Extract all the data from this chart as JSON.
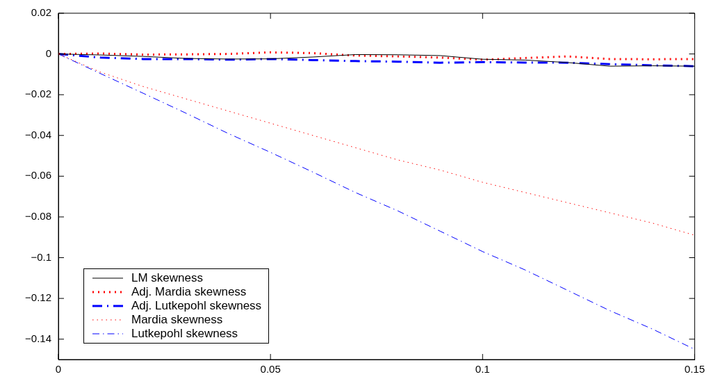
{
  "chart_data": {
    "type": "line",
    "x": [
      0,
      0.01,
      0.02,
      0.03,
      0.04,
      0.05,
      0.06,
      0.07,
      0.08,
      0.09,
      0.1,
      0.11,
      0.12,
      0.13,
      0.14,
      0.15
    ],
    "series": [
      {
        "name": "LM skewness",
        "color": "#000000",
        "line_style": "solid",
        "values": [
          0,
          -0.0005,
          -0.0012,
          -0.0022,
          -0.0025,
          -0.0024,
          -0.0015,
          -0.0003,
          -0.0004,
          -0.0008,
          -0.0026,
          -0.003,
          -0.0042,
          -0.006,
          -0.0058,
          -0.006
        ]
      },
      {
        "name": "Adj. Mardia skewness",
        "color": "#ff0000",
        "line_style": "dotted",
        "values": [
          0,
          0.0002,
          -0.0003,
          -0.0002,
          0,
          0.0008,
          0.0004,
          -0.0008,
          -0.0012,
          -0.0018,
          -0.0028,
          -0.002,
          -0.0012,
          -0.0025,
          -0.0026,
          -0.0025
        ]
      },
      {
        "name": "Adj. Lutkepohl skewness",
        "color": "#0000ff",
        "line_style": "dashdot",
        "values": [
          0,
          -0.0018,
          -0.0025,
          -0.0025,
          -0.0028,
          -0.0025,
          -0.003,
          -0.0035,
          -0.0038,
          -0.0043,
          -0.004,
          -0.0042,
          -0.0043,
          -0.005,
          -0.0056,
          -0.006
        ]
      },
      {
        "name": "Mardia skewness",
        "color": "#ff0000",
        "line_style": "dotted",
        "values": [
          0,
          -0.009,
          -0.016,
          -0.022,
          -0.028,
          -0.034,
          -0.04,
          -0.046,
          -0.052,
          -0.057,
          -0.063,
          -0.068,
          -0.073,
          -0.078,
          -0.083,
          -0.089
        ]
      },
      {
        "name": "Lutkepohl skewness",
        "color": "#0000ff",
        "line_style": "dashdot",
        "values": [
          0,
          -0.0097,
          -0.0193,
          -0.029,
          -0.039,
          -0.0483,
          -0.058,
          -0.068,
          -0.077,
          -0.087,
          -0.097,
          -0.106,
          -0.116,
          -0.126,
          -0.135,
          -0.145
        ]
      }
    ],
    "xlim": [
      0,
      0.15
    ],
    "xticks": [
      0,
      0.05,
      0.1,
      0.15
    ],
    "ylim": [
      -0.15,
      0.02
    ],
    "yticks": [
      0.02,
      0,
      -0.02,
      -0.04,
      -0.06,
      -0.08,
      -0.1,
      -0.12,
      -0.14
    ],
    "grid": false,
    "legend": "bottom left",
    "marker": "none"
  }
}
